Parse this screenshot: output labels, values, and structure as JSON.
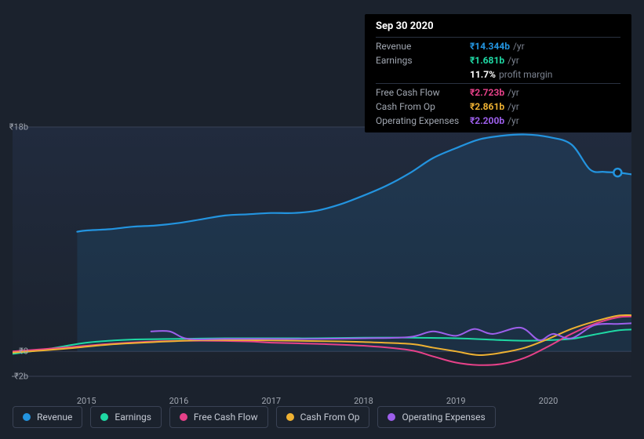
{
  "tooltip": {
    "date": "Sep 30 2020",
    "rows": [
      {
        "label": "Revenue",
        "value": "₹14.344b",
        "unit": "/yr",
        "color": "#2394df"
      },
      {
        "label": "Earnings",
        "value": "₹1.681b",
        "unit": "/yr",
        "color": "#1fd8a4"
      },
      {
        "label": "",
        "value": "11.7%",
        "unit": "profit margin",
        "color": "#ffffff"
      },
      {
        "label": "Free Cash Flow",
        "value": "₹2.723b",
        "unit": "/yr",
        "color": "#e64189"
      },
      {
        "label": "Cash From Op",
        "value": "₹2.861b",
        "unit": "/yr",
        "color": "#eeb132"
      },
      {
        "label": "Operating Expenses",
        "value": "₹2.200b",
        "unit": "/yr",
        "color": "#9d5feb"
      }
    ]
  },
  "chart": {
    "type": "line-area",
    "background_color": "#1b222d",
    "plot_gradient_from": "#212b3e",
    "plot_gradient_to": "#1b222d",
    "grid_color": "#384055",
    "axis_text_color": "#a0a6b0",
    "currency_symbol": "₹",
    "ylim": [
      -2,
      18
    ],
    "y_ticks": [
      {
        "v": 18,
        "label": "₹18b"
      },
      {
        "v": 0,
        "label": "₹0"
      },
      {
        "v": -2,
        "label": "-₹2b"
      }
    ],
    "x_range": [
      2014.2,
      2020.9
    ],
    "x_ticks": [
      2015,
      2016,
      2017,
      2018,
      2019,
      2020
    ],
    "cursor_x": 2020.75,
    "cursor_marker_color": "#2394df",
    "series": [
      {
        "name": "Revenue",
        "color": "#2394df",
        "area": true,
        "area_opacity": 0.12,
        "width": 2.2,
        "points": [
          [
            2014.9,
            9.6
          ],
          [
            2015.0,
            9.7
          ],
          [
            2015.25,
            9.8
          ],
          [
            2015.5,
            10.0
          ],
          [
            2015.75,
            10.1
          ],
          [
            2016.0,
            10.3
          ],
          [
            2016.25,
            10.6
          ],
          [
            2016.5,
            10.9
          ],
          [
            2016.75,
            11.0
          ],
          [
            2017.0,
            11.1
          ],
          [
            2017.25,
            11.1
          ],
          [
            2017.5,
            11.3
          ],
          [
            2017.75,
            11.8
          ],
          [
            2018.0,
            12.5
          ],
          [
            2018.25,
            13.3
          ],
          [
            2018.5,
            14.3
          ],
          [
            2018.75,
            15.5
          ],
          [
            2019.0,
            16.3
          ],
          [
            2019.25,
            17.0
          ],
          [
            2019.5,
            17.3
          ],
          [
            2019.75,
            17.4
          ],
          [
            2020.0,
            17.2
          ],
          [
            2020.25,
            16.6
          ],
          [
            2020.45,
            14.6
          ],
          [
            2020.6,
            14.4
          ],
          [
            2020.75,
            14.344
          ],
          [
            2020.9,
            14.2
          ]
        ]
      },
      {
        "name": "Earnings",
        "color": "#1fd8a4",
        "width": 2,
        "points": [
          [
            2014.2,
            -0.2
          ],
          [
            2014.5,
            0.1
          ],
          [
            2014.75,
            0.4
          ],
          [
            2015.0,
            0.7
          ],
          [
            2015.25,
            0.85
          ],
          [
            2015.5,
            0.95
          ],
          [
            2016.0,
            1.0
          ],
          [
            2016.5,
            1.05
          ],
          [
            2017.0,
            1.05
          ],
          [
            2017.5,
            1.05
          ],
          [
            2018.0,
            1.1
          ],
          [
            2018.5,
            1.1
          ],
          [
            2019.0,
            1.05
          ],
          [
            2019.5,
            0.9
          ],
          [
            2019.75,
            0.85
          ],
          [
            2020.0,
            0.9
          ],
          [
            2020.25,
            1.0
          ],
          [
            2020.5,
            1.35
          ],
          [
            2020.75,
            1.681
          ],
          [
            2020.9,
            1.75
          ]
        ]
      },
      {
        "name": "Free Cash Flow",
        "color": "#e64189",
        "width": 2,
        "points": [
          [
            2014.2,
            0.0
          ],
          [
            2014.75,
            0.3
          ],
          [
            2015.25,
            0.6
          ],
          [
            2015.75,
            0.8
          ],
          [
            2016.25,
            0.85
          ],
          [
            2016.75,
            0.8
          ],
          [
            2017.0,
            0.7
          ],
          [
            2017.5,
            0.6
          ],
          [
            2018.0,
            0.45
          ],
          [
            2018.5,
            0.1
          ],
          [
            2018.75,
            -0.4
          ],
          [
            2019.0,
            -0.9
          ],
          [
            2019.25,
            -1.1
          ],
          [
            2019.5,
            -1.0
          ],
          [
            2019.75,
            -0.5
          ],
          [
            2020.0,
            0.4
          ],
          [
            2020.25,
            1.4
          ],
          [
            2020.5,
            2.2
          ],
          [
            2020.75,
            2.723
          ],
          [
            2020.9,
            2.8
          ]
        ]
      },
      {
        "name": "Cash From Op",
        "color": "#eeb132",
        "width": 2,
        "points": [
          [
            2014.2,
            -0.1
          ],
          [
            2014.75,
            0.2
          ],
          [
            2015.25,
            0.55
          ],
          [
            2015.75,
            0.75
          ],
          [
            2016.25,
            0.9
          ],
          [
            2016.75,
            0.9
          ],
          [
            2017.25,
            0.85
          ],
          [
            2017.75,
            0.8
          ],
          [
            2018.0,
            0.75
          ],
          [
            2018.5,
            0.6
          ],
          [
            2018.75,
            0.3
          ],
          [
            2019.0,
            0.0
          ],
          [
            2019.25,
            -0.3
          ],
          [
            2019.5,
            -0.1
          ],
          [
            2019.75,
            0.3
          ],
          [
            2020.0,
            1.0
          ],
          [
            2020.25,
            1.8
          ],
          [
            2020.5,
            2.4
          ],
          [
            2020.75,
            2.861
          ],
          [
            2020.9,
            2.9
          ]
        ]
      },
      {
        "name": "Operating Expenses",
        "color": "#9d5feb",
        "width": 2,
        "points": [
          [
            2015.7,
            1.6
          ],
          [
            2015.9,
            1.6
          ],
          [
            2016.1,
            1.0
          ],
          [
            2016.5,
            1.0
          ],
          [
            2017.0,
            1.0
          ],
          [
            2017.5,
            1.0
          ],
          [
            2018.0,
            1.05
          ],
          [
            2018.5,
            1.15
          ],
          [
            2018.75,
            1.6
          ],
          [
            2019.0,
            1.25
          ],
          [
            2019.2,
            1.8
          ],
          [
            2019.4,
            1.4
          ],
          [
            2019.7,
            1.9
          ],
          [
            2019.9,
            0.9
          ],
          [
            2020.05,
            1.4
          ],
          [
            2020.25,
            1.05
          ],
          [
            2020.5,
            2.1
          ],
          [
            2020.75,
            2.2
          ],
          [
            2020.9,
            2.25
          ]
        ]
      }
    ]
  },
  "legend": {
    "items": [
      {
        "label": "Revenue",
        "color": "#2394df"
      },
      {
        "label": "Earnings",
        "color": "#1fd8a4"
      },
      {
        "label": "Free Cash Flow",
        "color": "#e64189"
      },
      {
        "label": "Cash From Op",
        "color": "#eeb132"
      },
      {
        "label": "Operating Expenses",
        "color": "#9d5feb"
      }
    ]
  }
}
